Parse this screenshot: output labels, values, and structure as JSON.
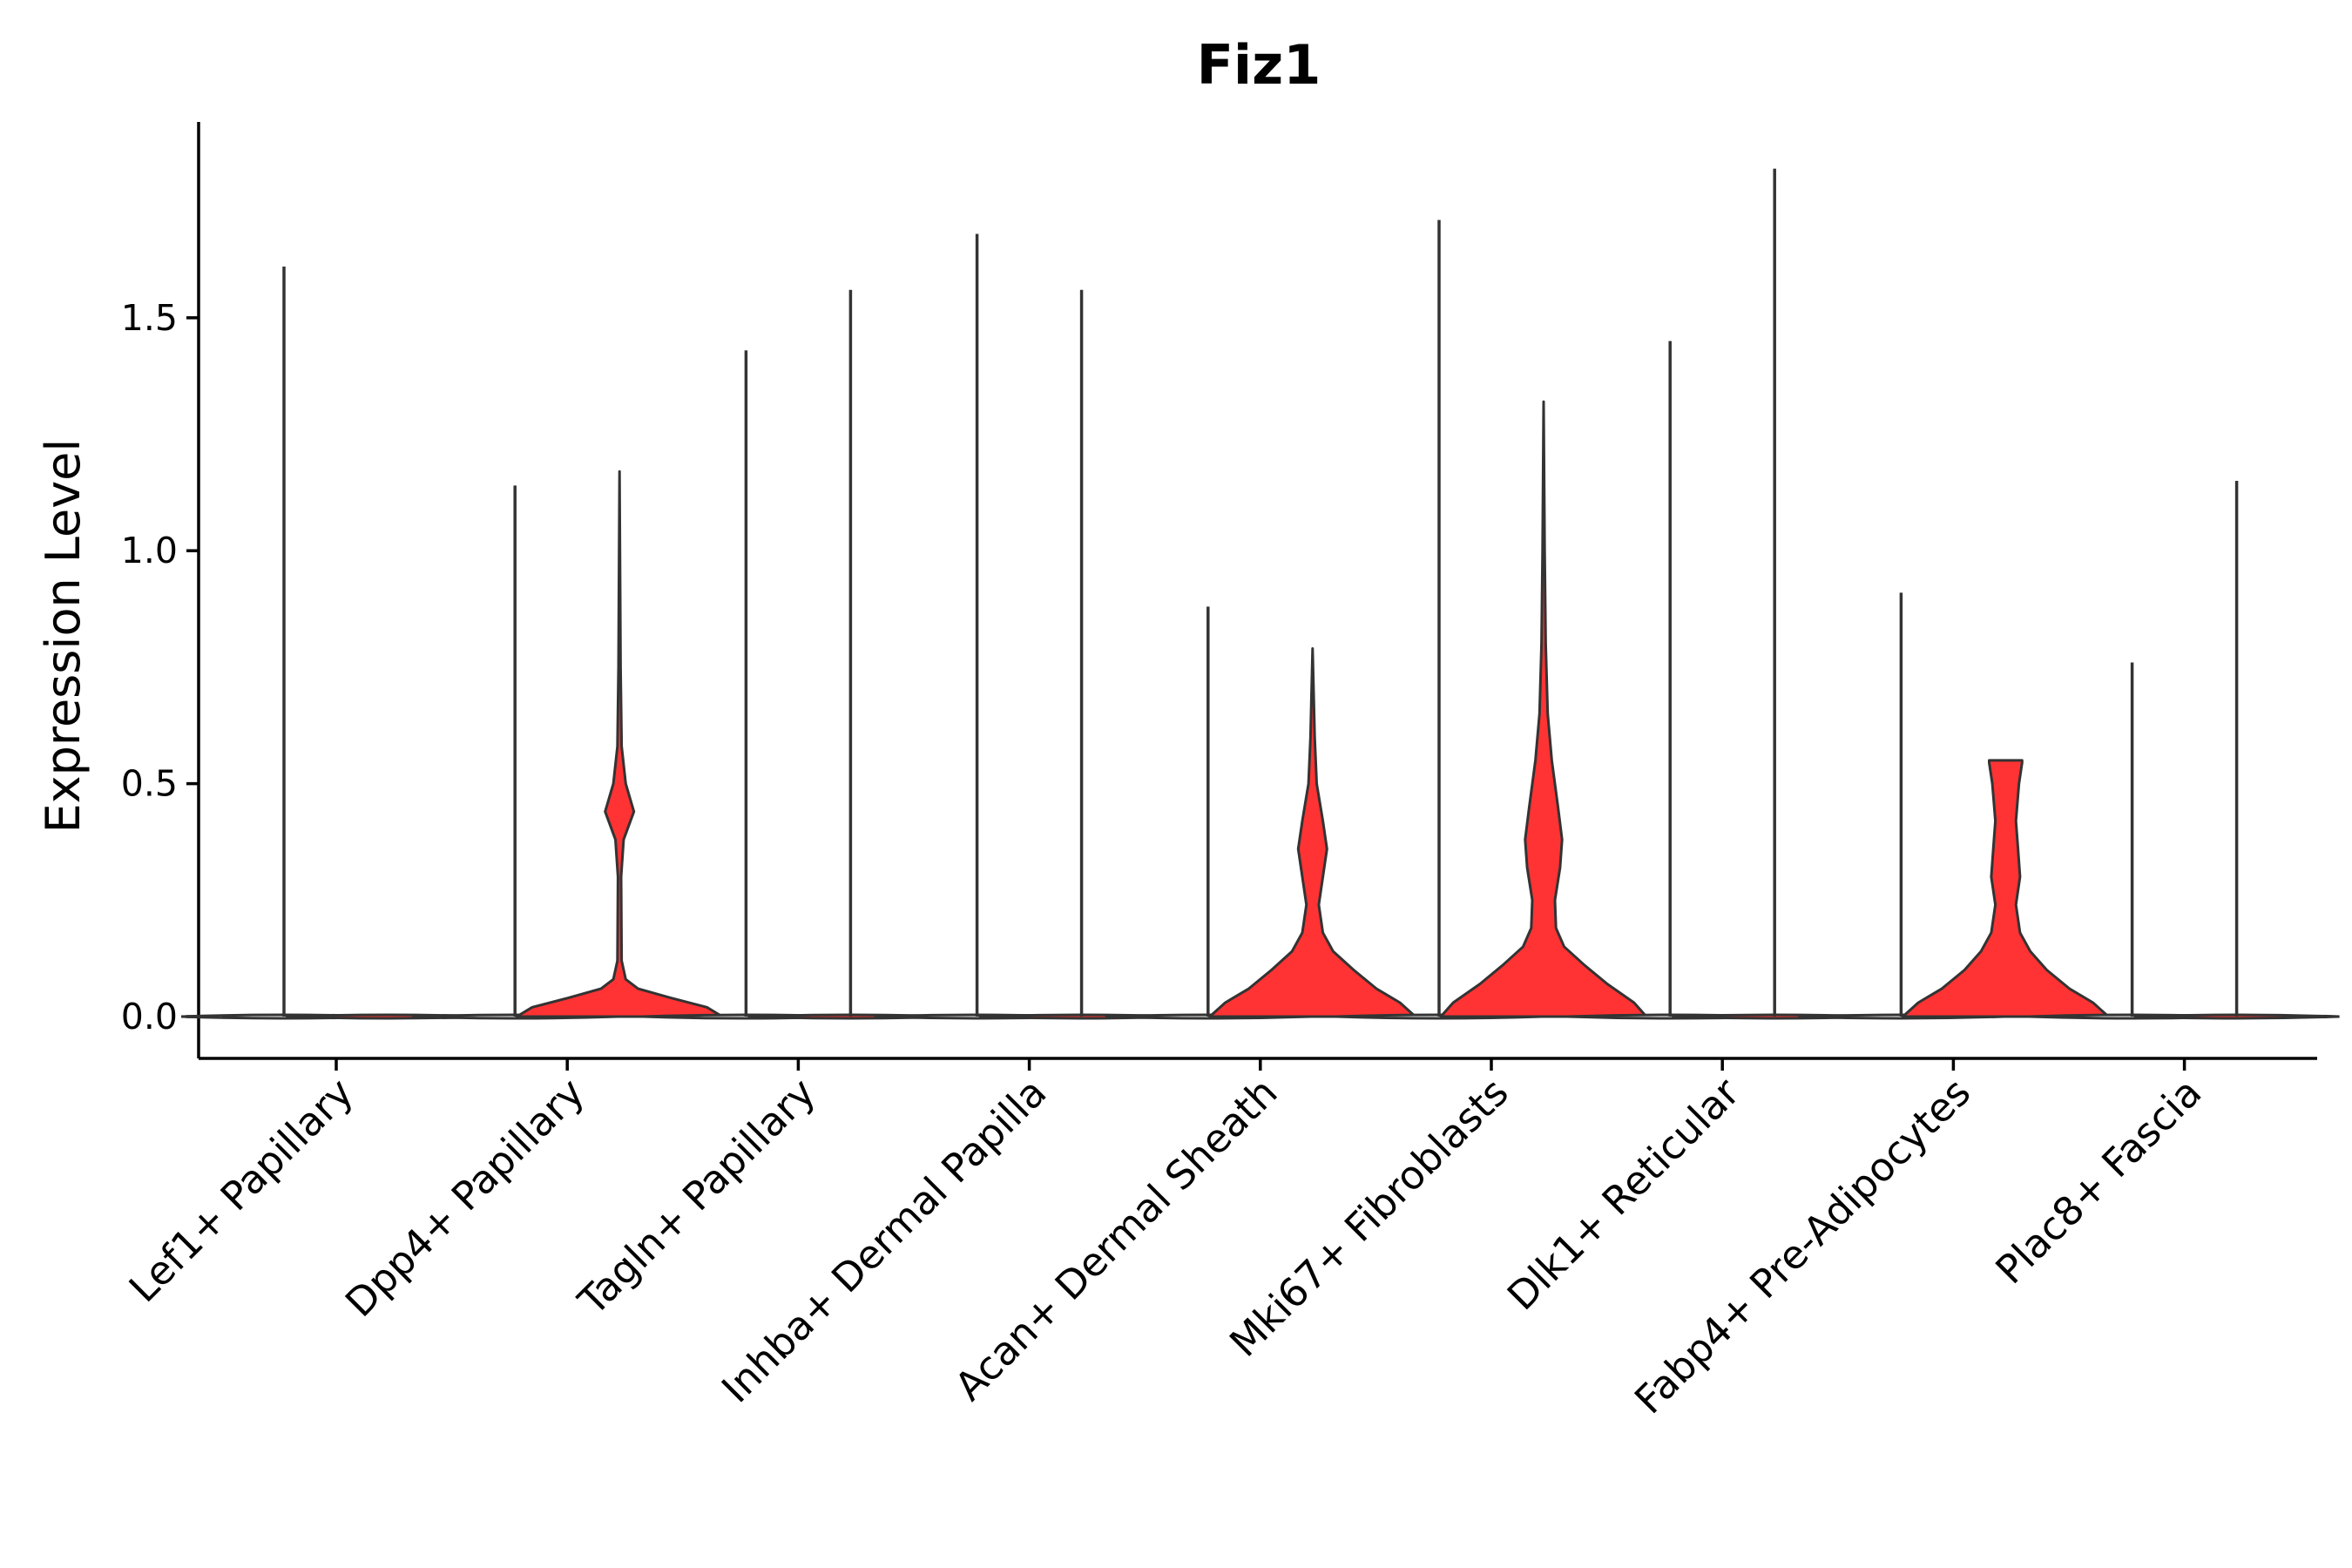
{
  "chart_data": {
    "type": "violin",
    "title": "Fiz1",
    "xlabel": "",
    "ylabel": "Expression Level",
    "ylim": [
      -0.09,
      1.93
    ],
    "yticks": [
      0.0,
      0.5,
      1.0,
      1.5
    ],
    "ytick_labels": [
      "0.0",
      "0.5",
      "1.0",
      "1.5"
    ],
    "categories": [
      "Lef1+ Papillary",
      "Dpp4+ Papillary",
      "Tagln+ Papillary",
      "Inhba+ Dermal Papilla",
      "Acan+ Dermal Sheath",
      "Mki67+ Fibroblasts",
      "Dlk1+ Reticular",
      "Fabp4+ Pre-Adipocytes",
      "Plac8+ Fascia"
    ],
    "series": [
      {
        "name": "0",
        "color": "#ffffff",
        "max_values": [
          1.61,
          1.14,
          1.43,
          1.68,
          0.88,
          1.71,
          1.45,
          0.91,
          0.76
        ]
      },
      {
        "name": "1",
        "color": "#ff3333",
        "max_values": [
          0.0,
          1.17,
          1.56,
          1.56,
          0.79,
          1.32,
          1.82,
          0.55,
          1.15
        ]
      }
    ],
    "filled_violins": [
      {
        "category": "Dpp4+ Papillary",
        "series": "1",
        "max": 1.17,
        "profile": [
          [
            0,
            1.0
          ],
          [
            0.02,
            0.85
          ],
          [
            0.04,
            0.5
          ],
          [
            0.06,
            0.18
          ],
          [
            0.08,
            0.06
          ],
          [
            0.12,
            0.02
          ],
          [
            0.3,
            0.015
          ],
          [
            0.38,
            0.04
          ],
          [
            0.44,
            0.14
          ],
          [
            0.5,
            0.06
          ],
          [
            0.58,
            0.02
          ],
          [
            0.75,
            0.01
          ],
          [
            1.17,
            0.0
          ]
        ]
      },
      {
        "category": "Acan+ Dermal Sheath",
        "series": "1",
        "max": 0.79,
        "profile": [
          [
            0,
            1.0
          ],
          [
            0.03,
            0.85
          ],
          [
            0.06,
            0.62
          ],
          [
            0.1,
            0.4
          ],
          [
            0.14,
            0.2
          ],
          [
            0.18,
            0.1
          ],
          [
            0.24,
            0.06
          ],
          [
            0.3,
            0.1
          ],
          [
            0.36,
            0.14
          ],
          [
            0.42,
            0.1
          ],
          [
            0.5,
            0.04
          ],
          [
            0.6,
            0.02
          ],
          [
            0.79,
            0.0
          ]
        ]
      },
      {
        "category": "Mki67+ Fibroblasts",
        "series": "1",
        "max": 1.32,
        "profile": [
          [
            0,
            1.0
          ],
          [
            0.03,
            0.88
          ],
          [
            0.07,
            0.62
          ],
          [
            0.11,
            0.4
          ],
          [
            0.15,
            0.2
          ],
          [
            0.19,
            0.12
          ],
          [
            0.25,
            0.11
          ],
          [
            0.32,
            0.16
          ],
          [
            0.38,
            0.18
          ],
          [
            0.45,
            0.14
          ],
          [
            0.55,
            0.08
          ],
          [
            0.65,
            0.04
          ],
          [
            0.8,
            0.02
          ],
          [
            1.0,
            0.01
          ],
          [
            1.32,
            0.0
          ]
        ]
      },
      {
        "category": "Fabp4+ Pre-Adipocytes",
        "series": "1",
        "max": 0.55,
        "profile": [
          [
            0,
            1.0
          ],
          [
            0.03,
            0.85
          ],
          [
            0.06,
            0.62
          ],
          [
            0.1,
            0.4
          ],
          [
            0.14,
            0.24
          ],
          [
            0.18,
            0.14
          ],
          [
            0.24,
            0.1
          ],
          [
            0.3,
            0.14
          ],
          [
            0.36,
            0.12
          ],
          [
            0.42,
            0.1
          ],
          [
            0.5,
            0.13
          ],
          [
            0.545,
            0.16
          ],
          [
            0.55,
            0.16
          ]
        ]
      }
    ],
    "legend": "none",
    "grid": false
  }
}
